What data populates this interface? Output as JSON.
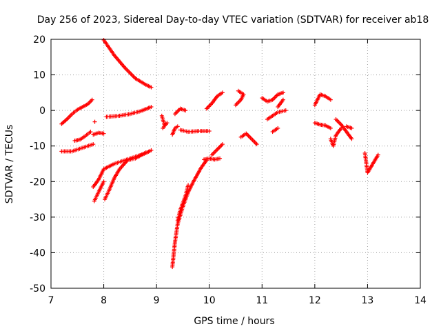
{
  "chart_data": {
    "type": "scatter",
    "title": "Day 256 of 2023, Sidereal Day-to-day VTEC variation (SDTVAR) for receiver ab18",
    "xlabel": "GPS time / hours",
    "ylabel": "SDTVAR / TECUs",
    "xlim": [
      7,
      14
    ],
    "ylim": [
      -50,
      20
    ],
    "xticks": [
      7,
      8,
      9,
      10,
      11,
      12,
      13,
      14
    ],
    "yticks": [
      -50,
      -40,
      -30,
      -20,
      -10,
      0,
      10,
      20
    ],
    "grid": true,
    "marker": "plus",
    "color": "#ff0000",
    "segments": [
      {
        "points": [
          [
            7.2,
            -3.8
          ],
          [
            7.3,
            -2.5
          ],
          [
            7.4,
            -1
          ],
          [
            7.5,
            0.2
          ],
          [
            7.6,
            1
          ],
          [
            7.7,
            1.8
          ],
          [
            7.78,
            3
          ]
        ]
      },
      {
        "points": [
          [
            7.2,
            -11.5
          ],
          [
            7.4,
            -11.5
          ],
          [
            7.6,
            -10.5
          ],
          [
            7.8,
            -9.5
          ]
        ]
      },
      {
        "points": [
          [
            7.45,
            -8.5
          ],
          [
            7.55,
            -8.2
          ],
          [
            7.65,
            -7.2
          ],
          [
            7.75,
            -6
          ]
        ]
      },
      {
        "points": [
          [
            7.8,
            -6.8
          ],
          [
            7.9,
            -6.3
          ],
          [
            8.0,
            -6.5
          ]
        ]
      },
      {
        "points": [
          [
            7.83,
            -3.2
          ]
        ]
      },
      {
        "points": [
          [
            7.8,
            -21.5
          ],
          [
            7.9,
            -19.5
          ],
          [
            8.0,
            -16.5
          ],
          [
            8.2,
            -15
          ],
          [
            8.4,
            -14
          ],
          [
            8.6,
            -13
          ],
          [
            8.8,
            -12
          ],
          [
            8.9,
            -11.2
          ]
        ]
      },
      {
        "points": [
          [
            7.82,
            -25.5
          ],
          [
            7.9,
            -23
          ],
          [
            8.0,
            -20
          ]
        ]
      },
      {
        "points": [
          [
            8.02,
            -25
          ],
          [
            8.1,
            -22.5
          ],
          [
            8.2,
            -19
          ],
          [
            8.3,
            -16.5
          ],
          [
            8.45,
            -14
          ],
          [
            8.6,
            -13.5
          ],
          [
            8.8,
            -11.8
          ]
        ]
      },
      {
        "points": [
          [
            8.0,
            19.8
          ],
          [
            8.2,
            15.5
          ],
          [
            8.4,
            12
          ],
          [
            8.6,
            9
          ],
          [
            8.8,
            7.2
          ],
          [
            8.9,
            6.5
          ]
        ]
      },
      {
        "points": [
          [
            8.05,
            -1.8
          ],
          [
            8.3,
            -1.5
          ],
          [
            8.5,
            -1
          ],
          [
            8.7,
            -0.2
          ],
          [
            8.9,
            1
          ]
        ]
      },
      {
        "points": [
          [
            9.1,
            -1.5
          ],
          [
            9.15,
            -4
          ],
          [
            9.2,
            -3.5
          ],
          [
            9.12,
            -5
          ]
        ]
      },
      {
        "points": [
          [
            9.3,
            -6.8
          ],
          [
            9.35,
            -5
          ],
          [
            9.4,
            -4.5
          ]
        ]
      },
      {
        "points": [
          [
            9.35,
            -1
          ],
          [
            9.45,
            0.5
          ],
          [
            9.55,
            0
          ]
        ]
      },
      {
        "points": [
          [
            9.45,
            -5.5
          ],
          [
            9.6,
            -6
          ],
          [
            9.8,
            -5.8
          ],
          [
            10.0,
            -5.8
          ]
        ]
      },
      {
        "points": [
          [
            9.3,
            -44
          ],
          [
            9.35,
            -37
          ],
          [
            9.4,
            -32
          ],
          [
            9.5,
            -27
          ],
          [
            9.6,
            -23
          ],
          [
            9.7,
            -20
          ],
          [
            9.85,
            -16
          ],
          [
            9.95,
            -14
          ]
        ]
      },
      {
        "points": [
          [
            9.4,
            -31
          ],
          [
            9.45,
            -28
          ],
          [
            9.55,
            -24
          ],
          [
            9.6,
            -21
          ]
        ]
      },
      {
        "points": [
          [
            9.9,
            -13.8
          ],
          [
            10.0,
            -13.5
          ],
          [
            10.1,
            -13.8
          ],
          [
            10.2,
            -13.5
          ]
        ]
      },
      {
        "points": [
          [
            10.05,
            -12.5
          ],
          [
            10.15,
            -11
          ],
          [
            10.25,
            -9.5
          ]
        ]
      },
      {
        "points": [
          [
            9.95,
            0.5
          ],
          [
            10.05,
            2
          ],
          [
            10.15,
            4
          ],
          [
            10.25,
            5
          ]
        ]
      },
      {
        "points": [
          [
            10.5,
            1.5
          ],
          [
            10.6,
            3
          ],
          [
            10.65,
            4.5
          ],
          [
            10.55,
            5.5
          ]
        ]
      },
      {
        "points": [
          [
            10.6,
            -7.5
          ],
          [
            10.7,
            -6.5
          ],
          [
            10.8,
            -8
          ],
          [
            10.9,
            -9.5
          ]
        ]
      },
      {
        "points": [
          [
            11.0,
            3.5
          ],
          [
            11.1,
            2.5
          ],
          [
            11.2,
            3
          ],
          [
            11.3,
            4.5
          ],
          [
            11.4,
            5
          ]
        ]
      },
      {
        "points": [
          [
            11.1,
            -2.5
          ],
          [
            11.2,
            -1.5
          ],
          [
            11.3,
            -0.5
          ],
          [
            11.45,
            0
          ]
        ]
      },
      {
        "points": [
          [
            11.2,
            -6
          ],
          [
            11.3,
            -5
          ]
        ]
      },
      {
        "points": [
          [
            11.3,
            1
          ],
          [
            11.35,
            2
          ],
          [
            11.4,
            3
          ]
        ]
      },
      {
        "points": [
          [
            12.0,
            1.5
          ],
          [
            12.05,
            3
          ],
          [
            12.1,
            4.5
          ],
          [
            12.2,
            4
          ],
          [
            12.3,
            3
          ]
        ]
      },
      {
        "points": [
          [
            12.0,
            -3.5
          ],
          [
            12.1,
            -4
          ],
          [
            12.2,
            -4.2
          ],
          [
            12.3,
            -5
          ]
        ]
      },
      {
        "points": [
          [
            12.3,
            -8
          ],
          [
            12.35,
            -10
          ],
          [
            12.4,
            -7
          ],
          [
            12.5,
            -5
          ]
        ]
      },
      {
        "points": [
          [
            12.4,
            -2.5
          ],
          [
            12.5,
            -4
          ],
          [
            12.6,
            -6
          ],
          [
            12.7,
            -8
          ]
        ]
      },
      {
        "points": [
          [
            12.6,
            -4.5
          ],
          [
            12.7,
            -5
          ]
        ]
      },
      {
        "points": [
          [
            12.95,
            -12
          ],
          [
            13.0,
            -17.5
          ],
          [
            13.1,
            -15
          ],
          [
            13.2,
            -12.5
          ]
        ]
      }
    ]
  }
}
